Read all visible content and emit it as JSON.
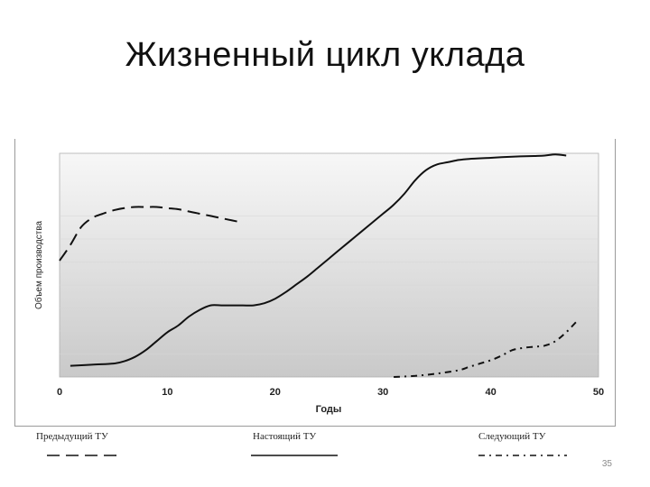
{
  "slide": {
    "title": "Жизненный цикл уклада",
    "page_number": "35"
  },
  "chart_data": {
    "type": "line",
    "xlabel": "Годы",
    "ylabel": "Объем производства",
    "xlim": [
      0,
      50
    ],
    "ylim": [
      0,
      10
    ],
    "x_ticks": [
      "0",
      "10",
      "20",
      "30",
      "40",
      "50"
    ],
    "grid": false,
    "legend_position": "bottom",
    "series": [
      {
        "name": "Предыдущий ТУ",
        "style": "dashed",
        "x": [
          0,
          1,
          2,
          3,
          4,
          5,
          6,
          7,
          8,
          9,
          10,
          11,
          12,
          13,
          14,
          15,
          16,
          17
        ],
        "y": [
          5.2,
          5.9,
          6.7,
          7.1,
          7.3,
          7.45,
          7.55,
          7.6,
          7.6,
          7.6,
          7.55,
          7.5,
          7.4,
          7.3,
          7.2,
          7.1,
          7.0,
          6.9
        ]
      },
      {
        "name": "Настоящий ТУ",
        "style": "solid",
        "x": [
          1,
          3,
          5,
          6,
          7,
          8,
          9,
          10,
          11,
          12,
          13,
          14,
          15,
          16,
          17,
          18,
          19,
          20,
          21,
          22,
          23,
          24,
          25,
          26,
          27,
          28,
          29,
          30,
          31,
          32,
          33,
          34,
          35,
          36,
          37,
          38,
          40,
          42,
          44,
          45,
          46,
          47
        ],
        "y": [
          0.5,
          0.55,
          0.6,
          0.7,
          0.9,
          1.2,
          1.6,
          2.0,
          2.3,
          2.7,
          3.0,
          3.2,
          3.2,
          3.2,
          3.2,
          3.2,
          3.3,
          3.5,
          3.8,
          4.15,
          4.5,
          4.9,
          5.3,
          5.7,
          6.1,
          6.5,
          6.9,
          7.3,
          7.7,
          8.2,
          8.8,
          9.25,
          9.5,
          9.6,
          9.7,
          9.75,
          9.8,
          9.85,
          9.88,
          9.9,
          9.95,
          9.9
        ]
      },
      {
        "name": "Следующий ТУ",
        "style": "dash-dot",
        "x": [
          31,
          33,
          35,
          37,
          38,
          39,
          40,
          41,
          42,
          43,
          44,
          45,
          46,
          47,
          48
        ],
        "y": [
          0.0,
          0.05,
          0.15,
          0.3,
          0.45,
          0.6,
          0.75,
          0.95,
          1.2,
          1.3,
          1.35,
          1.4,
          1.6,
          2.0,
          2.5
        ]
      }
    ]
  }
}
